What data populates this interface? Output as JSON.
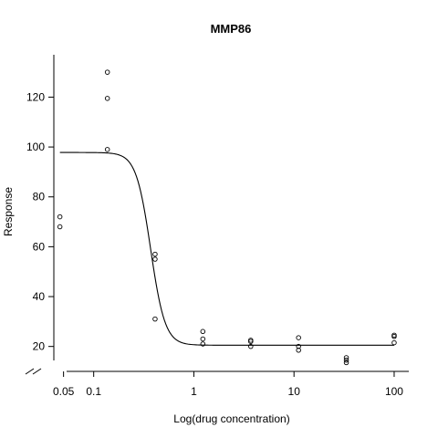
{
  "chart_data": {
    "type": "scatter",
    "title": "MMP86",
    "xlabel": "Log(drug concentration)",
    "ylabel": "Response",
    "x_scale": "log",
    "xlim": [
      0.04,
      140
    ],
    "ylim": [
      10,
      137
    ],
    "x_ticks": [
      0.05,
      0.1,
      1,
      10,
      100
    ],
    "x_tick_labels": [
      "0.05",
      "0.1",
      "1",
      "10",
      "100"
    ],
    "y_ticks": [
      20,
      40,
      60,
      80,
      100,
      120
    ],
    "y_tick_labels": [
      "20",
      "40",
      "60",
      "80",
      "100",
      "120"
    ],
    "axis_break": true,
    "grid": false,
    "points": [
      {
        "x": 0.046,
        "y": 72
      },
      {
        "x": 0.046,
        "y": 68
      },
      {
        "x": 0.137,
        "y": 130
      },
      {
        "x": 0.137,
        "y": 119.5
      },
      {
        "x": 0.137,
        "y": 99
      },
      {
        "x": 0.41,
        "y": 57
      },
      {
        "x": 0.41,
        "y": 55
      },
      {
        "x": 0.41,
        "y": 31
      },
      {
        "x": 1.23,
        "y": 26
      },
      {
        "x": 1.23,
        "y": 23
      },
      {
        "x": 1.23,
        "y": 21
      },
      {
        "x": 3.7,
        "y": 22.5
      },
      {
        "x": 3.7,
        "y": 22
      },
      {
        "x": 3.7,
        "y": 20
      },
      {
        "x": 11.1,
        "y": 23.5
      },
      {
        "x": 11.1,
        "y": 20
      },
      {
        "x": 11.1,
        "y": 18.5
      },
      {
        "x": 33.3,
        "y": 15.5
      },
      {
        "x": 33.3,
        "y": 14.5
      },
      {
        "x": 33.3,
        "y": 13.5
      },
      {
        "x": 100,
        "y": 24.5
      },
      {
        "x": 100,
        "y": 24
      },
      {
        "x": 100,
        "y": 21.5
      }
    ],
    "fit": {
      "model": "4-parameter logistic",
      "top": 97.8,
      "bottom": 20.5,
      "ec50": 0.37,
      "hill": 6,
      "x_range": [
        0.046,
        100
      ]
    },
    "colors": {
      "points": "#000000",
      "curve": "#000000",
      "axis": "#000000"
    }
  }
}
